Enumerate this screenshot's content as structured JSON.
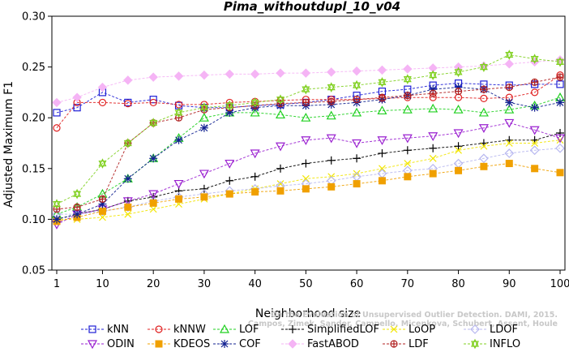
{
  "chart_data": {
    "type": "line",
    "title": "Pima_withoutdupl_10_v04",
    "xlabel": "Neighborhood size",
    "ylabel": "Adjusted Maximum F1",
    "xlim": [
      1,
      100
    ],
    "ylim": [
      0.05,
      0.3
    ],
    "xticks": [
      1,
      10,
      20,
      30,
      40,
      50,
      60,
      70,
      80,
      90,
      100
    ],
    "yticks": [
      0.05,
      0.1,
      0.15,
      0.2,
      0.25,
      0.3
    ],
    "ytick_labels": [
      "0.05",
      "0.10",
      "0.15",
      "0.20",
      "0.25",
      "0.30"
    ],
    "legend_position": "bottom",
    "watermark": [
      "Campos, Zimek, Sander, Campello, Micenkova, Schubert, Assent, Houle",
      "On the Evaluation of Unsupervised Outlier Detection. DAMI, 2015."
    ],
    "series": [
      {
        "name": "kNN",
        "color": "#1f1fd6",
        "marker": "square",
        "x": [
          1,
          5,
          10,
          15,
          20,
          25,
          30,
          35,
          40,
          45,
          50,
          55,
          60,
          65,
          70,
          75,
          80,
          85,
          90,
          95,
          100
        ],
        "y": [
          0.205,
          0.21,
          0.225,
          0.215,
          0.218,
          0.212,
          0.21,
          0.21,
          0.212,
          0.213,
          0.215,
          0.218,
          0.222,
          0.226,
          0.228,
          0.232,
          0.234,
          0.233,
          0.232,
          0.233,
          0.233
        ]
      },
      {
        "name": "kNNW",
        "color": "#e02020",
        "marker": "circle",
        "x": [
          1,
          5,
          10,
          15,
          20,
          25,
          30,
          35,
          40,
          45,
          50,
          55,
          60,
          65,
          70,
          75,
          80,
          85,
          90,
          95,
          100
        ],
        "y": [
          0.19,
          0.215,
          0.215,
          0.214,
          0.215,
          0.213,
          0.213,
          0.215,
          0.216,
          0.217,
          0.218,
          0.218,
          0.218,
          0.219,
          0.22,
          0.22,
          0.22,
          0.219,
          0.22,
          0.225,
          0.242
        ]
      },
      {
        "name": "LOF",
        "color": "#20d020",
        "marker": "triangle-up",
        "x": [
          1,
          5,
          10,
          15,
          20,
          25,
          30,
          35,
          40,
          45,
          50,
          55,
          60,
          65,
          70,
          75,
          80,
          85,
          90,
          95,
          100
        ],
        "y": [
          0.105,
          0.112,
          0.125,
          0.14,
          0.16,
          0.18,
          0.2,
          0.205,
          0.205,
          0.203,
          0.2,
          0.202,
          0.205,
          0.207,
          0.208,
          0.209,
          0.208,
          0.205,
          0.208,
          0.212,
          0.22
        ]
      },
      {
        "name": "SimplifiedLOF",
        "color": "#000000",
        "marker": "plus",
        "x": [
          1,
          5,
          10,
          15,
          20,
          25,
          30,
          35,
          40,
          45,
          50,
          55,
          60,
          65,
          70,
          75,
          80,
          85,
          90,
          95,
          100
        ],
        "y": [
          0.1,
          0.105,
          0.11,
          0.118,
          0.122,
          0.128,
          0.13,
          0.138,
          0.142,
          0.15,
          0.155,
          0.158,
          0.16,
          0.165,
          0.168,
          0.17,
          0.172,
          0.175,
          0.178,
          0.178,
          0.185
        ]
      },
      {
        "name": "LoOP",
        "color": "#f2e600",
        "marker": "x",
        "x": [
          1,
          5,
          10,
          15,
          20,
          25,
          30,
          35,
          40,
          45,
          50,
          55,
          60,
          65,
          70,
          75,
          80,
          85,
          90,
          95,
          100
        ],
        "y": [
          0.1,
          0.1,
          0.102,
          0.105,
          0.11,
          0.115,
          0.12,
          0.125,
          0.13,
          0.135,
          0.14,
          0.142,
          0.145,
          0.15,
          0.155,
          0.16,
          0.168,
          0.172,
          0.175,
          0.175,
          0.178
        ]
      },
      {
        "name": "LDOF",
        "color": "#b8b8f0",
        "marker": "diamond",
        "x": [
          1,
          5,
          10,
          15,
          20,
          25,
          30,
          35,
          40,
          45,
          50,
          55,
          60,
          65,
          70,
          75,
          80,
          85,
          90,
          95,
          100
        ],
        "y": [
          0.105,
          0.105,
          0.108,
          0.112,
          0.118,
          0.122,
          0.125,
          0.128,
          0.13,
          0.133,
          0.135,
          0.138,
          0.142,
          0.145,
          0.148,
          0.15,
          0.155,
          0.16,
          0.165,
          0.168,
          0.17
        ]
      },
      {
        "name": "ODIN",
        "color": "#9a20d0",
        "marker": "triangle-down",
        "x": [
          1,
          5,
          10,
          15,
          20,
          25,
          30,
          35,
          40,
          45,
          50,
          55,
          60,
          65,
          70,
          75,
          80,
          85,
          90,
          95,
          100
        ],
        "y": [
          0.095,
          0.105,
          0.11,
          0.118,
          0.125,
          0.135,
          0.145,
          0.155,
          0.165,
          0.172,
          0.178,
          0.18,
          0.175,
          0.178,
          0.18,
          0.182,
          0.185,
          0.19,
          0.195,
          0.188,
          0.18
        ]
      },
      {
        "name": "KDEOS",
        "color": "#f0a000",
        "marker": "square-filled",
        "x": [
          1,
          5,
          10,
          15,
          20,
          25,
          30,
          35,
          40,
          45,
          50,
          55,
          60,
          65,
          70,
          75,
          80,
          85,
          90,
          95,
          100
        ],
        "y": [
          0.098,
          0.102,
          0.108,
          0.112,
          0.116,
          0.12,
          0.122,
          0.125,
          0.127,
          0.128,
          0.13,
          0.132,
          0.135,
          0.138,
          0.142,
          0.145,
          0.148,
          0.152,
          0.155,
          0.15,
          0.146
        ]
      },
      {
        "name": "COF",
        "color": "#102090",
        "marker": "asterisk",
        "x": [
          1,
          5,
          10,
          15,
          20,
          25,
          30,
          35,
          40,
          45,
          50,
          55,
          60,
          65,
          70,
          75,
          80,
          85,
          90,
          95,
          100
        ],
        "y": [
          0.1,
          0.105,
          0.115,
          0.14,
          0.16,
          0.178,
          0.19,
          0.205,
          0.21,
          0.212,
          0.212,
          0.213,
          0.215,
          0.218,
          0.222,
          0.228,
          0.23,
          0.228,
          0.215,
          0.21,
          0.215
        ]
      },
      {
        "name": "FastABOD",
        "color": "#f5b4f5",
        "marker": "diamond-filled",
        "x": [
          1,
          5,
          10,
          15,
          20,
          25,
          30,
          35,
          40,
          45,
          50,
          55,
          60,
          65,
          70,
          75,
          80,
          85,
          90,
          95,
          100
        ],
        "y": [
          0.215,
          0.22,
          0.23,
          0.237,
          0.24,
          0.241,
          0.242,
          0.243,
          0.243,
          0.244,
          0.244,
          0.245,
          0.246,
          0.247,
          0.248,
          0.249,
          0.25,
          0.251,
          0.253,
          0.255,
          0.257
        ]
      },
      {
        "name": "LDF",
        "color": "#b02020",
        "marker": "circle-plus",
        "x": [
          1,
          5,
          10,
          15,
          20,
          25,
          30,
          35,
          40,
          45,
          50,
          55,
          60,
          65,
          70,
          75,
          80,
          85,
          90,
          95,
          100
        ],
        "y": [
          0.11,
          0.112,
          0.12,
          0.175,
          0.195,
          0.2,
          0.208,
          0.21,
          0.212,
          0.214,
          0.215,
          0.216,
          0.218,
          0.22,
          0.222,
          0.224,
          0.226,
          0.228,
          0.23,
          0.235,
          0.24
        ]
      },
      {
        "name": "INFLO",
        "color": "#80d020",
        "marker": "star",
        "x": [
          1,
          5,
          10,
          15,
          20,
          25,
          30,
          35,
          40,
          45,
          50,
          55,
          60,
          65,
          70,
          75,
          80,
          85,
          90,
          95,
          100
        ],
        "y": [
          0.115,
          0.125,
          0.155,
          0.175,
          0.195,
          0.205,
          0.21,
          0.212,
          0.215,
          0.218,
          0.228,
          0.23,
          0.232,
          0.235,
          0.238,
          0.242,
          0.245,
          0.25,
          0.262,
          0.258,
          0.255
        ]
      }
    ]
  }
}
